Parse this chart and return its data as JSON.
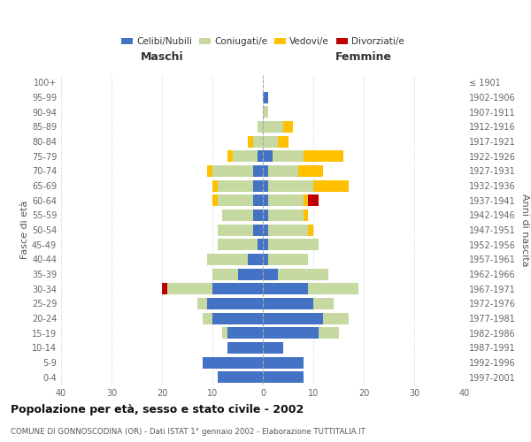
{
  "age_groups": [
    "0-4",
    "5-9",
    "10-14",
    "15-19",
    "20-24",
    "25-29",
    "30-34",
    "35-39",
    "40-44",
    "45-49",
    "50-54",
    "55-59",
    "60-64",
    "65-69",
    "70-74",
    "75-79",
    "80-84",
    "85-89",
    "90-94",
    "95-99",
    "100+"
  ],
  "birth_years": [
    "1997-2001",
    "1992-1996",
    "1987-1991",
    "1982-1986",
    "1977-1981",
    "1972-1976",
    "1967-1971",
    "1962-1966",
    "1957-1961",
    "1952-1956",
    "1947-1951",
    "1942-1946",
    "1937-1941",
    "1932-1936",
    "1927-1931",
    "1922-1926",
    "1917-1921",
    "1912-1916",
    "1907-1911",
    "1902-1906",
    "≤ 1901"
  ],
  "male": {
    "celibi": [
      9,
      12,
      7,
      7,
      10,
      11,
      10,
      5,
      3,
      1,
      2,
      2,
      2,
      2,
      2,
      1,
      0,
      0,
      0,
      0,
      0
    ],
    "coniugati": [
      0,
      0,
      0,
      1,
      2,
      2,
      9,
      5,
      8,
      8,
      7,
      6,
      7,
      7,
      8,
      5,
      2,
      1,
      0,
      0,
      0
    ],
    "vedovi": [
      0,
      0,
      0,
      0,
      0,
      0,
      0,
      0,
      0,
      0,
      0,
      0,
      1,
      1,
      1,
      1,
      1,
      0,
      0,
      0,
      0
    ],
    "divorziati": [
      0,
      0,
      0,
      0,
      0,
      0,
      1,
      0,
      0,
      0,
      0,
      0,
      0,
      0,
      0,
      0,
      0,
      0,
      0,
      0,
      0
    ]
  },
  "female": {
    "nubili": [
      8,
      8,
      4,
      11,
      12,
      10,
      9,
      3,
      1,
      1,
      1,
      1,
      1,
      1,
      1,
      2,
      0,
      0,
      0,
      1,
      0
    ],
    "coniugate": [
      0,
      0,
      0,
      4,
      5,
      4,
      10,
      10,
      8,
      10,
      8,
      7,
      7,
      9,
      6,
      6,
      3,
      4,
      1,
      0,
      0
    ],
    "vedove": [
      0,
      0,
      0,
      0,
      0,
      0,
      0,
      0,
      0,
      0,
      1,
      1,
      1,
      7,
      5,
      8,
      2,
      2,
      0,
      0,
      0
    ],
    "divorziate": [
      0,
      0,
      0,
      0,
      0,
      0,
      0,
      0,
      0,
      0,
      0,
      0,
      2,
      0,
      0,
      0,
      0,
      0,
      0,
      0,
      0
    ]
  },
  "color_celibi": "#4472c4",
  "color_coniugati": "#c5d9a0",
  "color_vedovi": "#ffc000",
  "color_divorziati": "#c00000",
  "title": "Popolazione per età, sesso e stato civile - 2002",
  "subtitle": "COMUNE DI GONNOSCODINA (OR) - Dati ISTAT 1° gennaio 2002 - Elaborazione TUTTITALIA.IT",
  "ylabel_left": "Fasce di età",
  "ylabel_right": "Anni di nascita",
  "xlabel_left": "Maschi",
  "xlabel_right": "Femmine",
  "xlim": 40,
  "background_color": "#ffffff",
  "grid_color": "#cccccc"
}
